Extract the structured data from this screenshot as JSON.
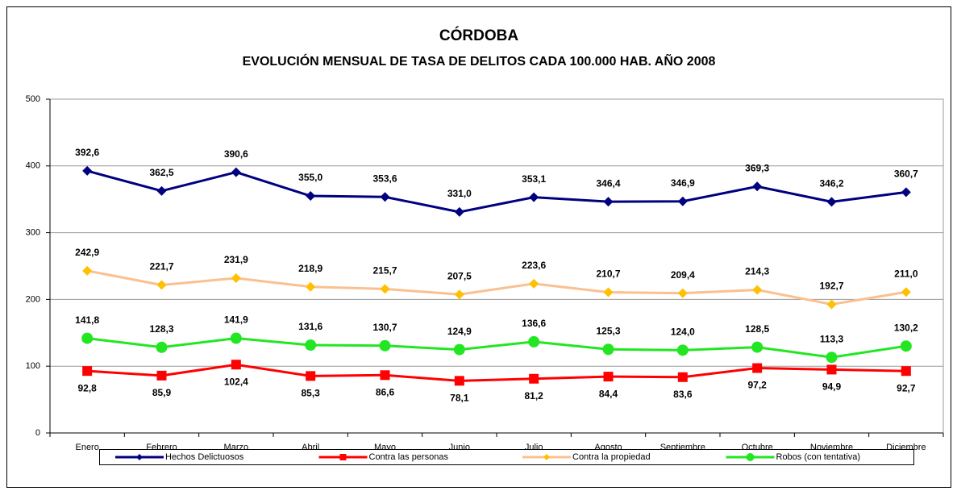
{
  "chart_data": {
    "type": "line",
    "title": "CÓRDOBA",
    "subtitle": "EVOLUCIÓN MENSUAL DE TASA DE DELITOS CADA 100.000 HAB. AÑO 2008",
    "categories": [
      "Enero",
      "Febrero",
      "Marzo",
      "Abril",
      "Mayo",
      "Junio",
      "Julio",
      "Agosto",
      "Septiembre",
      "Octubre",
      "Noviembre",
      "Diciembre"
    ],
    "ylim": [
      0,
      500
    ],
    "yticks": [
      0,
      100,
      200,
      300,
      400,
      500
    ],
    "grid": true,
    "legend": "bottom",
    "series": [
      {
        "name": "Hechos Delictuosos",
        "color": "#000080",
        "marker": "diamond",
        "label_side": "above",
        "values": [
          392.6,
          362.5,
          390.6,
          355.0,
          353.6,
          331.0,
          353.1,
          346.4,
          346.9,
          369.3,
          346.2,
          360.7
        ],
        "value_labels": [
          "392,6",
          "362,5",
          "390,6",
          "355,0",
          "353,6",
          "331,0",
          "353,1",
          "346,4",
          "346,9",
          "369,3",
          "346,2",
          "360,7"
        ]
      },
      {
        "name": "Contra las personas",
        "color": "#ff0000",
        "marker": "square",
        "label_side": "below",
        "values": [
          92.8,
          85.9,
          102.4,
          85.3,
          86.6,
          78.1,
          81.2,
          84.4,
          83.6,
          97.2,
          94.9,
          92.7
        ],
        "value_labels": [
          "92,8",
          "85,9",
          "102,4",
          "85,3",
          "86,6",
          "78,1",
          "81,2",
          "84,4",
          "83,6",
          "97,2",
          "94,9",
          "92,7"
        ]
      },
      {
        "name": "Contra la propiedad",
        "color": "#fac090",
        "marker": "diamond",
        "label_side": "above",
        "values": [
          242.9,
          221.7,
          231.9,
          218.9,
          215.7,
          207.5,
          223.6,
          210.7,
          209.4,
          214.3,
          192.7,
          211.0
        ],
        "value_labels": [
          "242,9",
          "221,7",
          "231,9",
          "218,9",
          "215,7",
          "207,5",
          "223,6",
          "210,7",
          "209,4",
          "214,3",
          "192,7",
          "211,0"
        ]
      },
      {
        "name": "Robos (con tentativa)",
        "color": "#22e622",
        "marker": "circle",
        "label_side": "above",
        "values": [
          141.8,
          128.3,
          141.9,
          131.6,
          130.7,
          124.9,
          136.6,
          125.3,
          124.0,
          128.5,
          113.3,
          130.2
        ],
        "value_labels": [
          "141,8",
          "128,3",
          "141,9",
          "131,6",
          "130,7",
          "124,9",
          "136,6",
          "125,3",
          "124,0",
          "128,5",
          "113,3",
          "130,2"
        ]
      }
    ]
  }
}
